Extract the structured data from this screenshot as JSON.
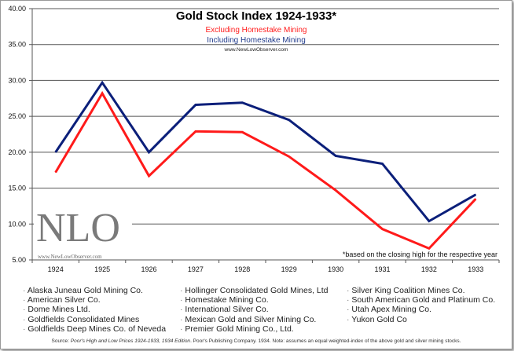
{
  "chart_data": {
    "type": "line",
    "title": "Gold Stock Index 1924-1933*",
    "subtitle_lines": [
      "Excluding Homestake Mining",
      "Including Homestake Mining"
    ],
    "website": "www.NewLowObserver.com",
    "categories": [
      "1924",
      "1925",
      "1926",
      "1927",
      "1928",
      "1929",
      "1930",
      "1931",
      "1932",
      "1933"
    ],
    "series": [
      {
        "name": "Including Homestake Mining",
        "color": "#0b1f7a",
        "values": [
          20.0,
          29.7,
          20.0,
          26.6,
          26.9,
          24.5,
          19.5,
          18.4,
          10.4,
          14.1
        ]
      },
      {
        "name": "Excluding Homestake Mining",
        "color": "#ff1a1a",
        "values": [
          17.2,
          28.2,
          16.7,
          22.9,
          22.8,
          19.4,
          14.7,
          9.3,
          6.6,
          13.5
        ]
      }
    ],
    "ylim": [
      5,
      40
    ],
    "yticks": [
      "5.00",
      "10.00",
      "15.00",
      "20.00",
      "25.00",
      "30.00",
      "35.00",
      "40.00"
    ],
    "grid": true,
    "footnote": "*based on the closing high for the respective year",
    "watermark": {
      "text": "NLO",
      "url": "www.NewLowObserver.com"
    }
  },
  "companies": [
    [
      "Alaska Juneau Gold Mining Co.",
      "American Silver Co.",
      "Dome Mines Ltd.",
      "Goldfields Consolidated Mines",
      "Goldfields Deep Mines Co. of Neveda"
    ],
    [
      "Hollinger Consolidated Gold Mines, Ltd",
      "Homestake Mining Co.",
      "International Silver Co.",
      "Mexican Gold and Silver Mining Co.",
      "Premier Gold Mining Co., Ltd."
    ],
    [
      "Silver King Coalition Mines Co.",
      "South American Gold and Platinum Co.",
      "Utah Apex Mining Co.",
      "Yukon Gold Co"
    ]
  ],
  "source": {
    "prefix": "Source: ",
    "title": "Poor's High and Low Prices 1924-1933, 1934 Edition",
    "rest": ". Poor's Publishing Company. 1934.  Note: assumes an equal weighted-index of the above gold and silver mining stocks."
  }
}
